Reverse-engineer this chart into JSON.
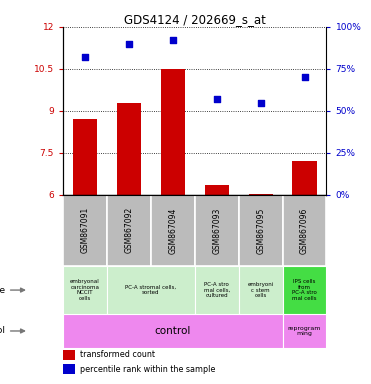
{
  "title": "GDS4124 / 202669_s_at",
  "samples": [
    "GSM867091",
    "GSM867092",
    "GSM867094",
    "GSM867093",
    "GSM867095",
    "GSM867096"
  ],
  "bar_values": [
    8.7,
    9.3,
    10.5,
    6.35,
    6.05,
    7.2
  ],
  "dot_values": [
    82,
    90,
    92,
    57,
    55,
    70
  ],
  "ylim_left": [
    6,
    12
  ],
  "ylim_right": [
    0,
    100
  ],
  "yticks_left": [
    6,
    7.5,
    9,
    10.5,
    12
  ],
  "yticks_right": [
    0,
    25,
    50,
    75,
    100
  ],
  "ytick_labels_left": [
    "6",
    "7.5",
    "9",
    "10.5",
    "12"
  ],
  "ytick_labels_right": [
    "0%",
    "25%",
    "50%",
    "75%",
    "100%"
  ],
  "bar_color": "#cc0000",
  "dot_color": "#0000cc",
  "left_axis_color": "#cc0000",
  "right_axis_color": "#0000cc",
  "cell_types": [
    {
      "label": "embryonal\ncarcinoma\nNCCIT\ncells",
      "span": [
        0,
        1
      ]
    },
    {
      "label": "PC-A stromal cells,\nsorted",
      "span": [
        1,
        3
      ]
    },
    {
      "label": "PC-A stro\nmal cells,\ncultured",
      "span": [
        3,
        4
      ]
    },
    {
      "label": "embryoni\nc stem\ncells",
      "span": [
        4,
        5
      ]
    },
    {
      "label": "IPS cells\nfrom\nPC-A stro\nmal cells",
      "span": [
        5,
        6
      ]
    }
  ],
  "cell_type_colors": [
    "#cceecc",
    "#cceecc",
    "#cceecc",
    "#cceecc",
    "#44dd44"
  ],
  "protocol_control_label": "control",
  "protocol_reprog_label": "reprogram\nming",
  "protocol_color": "#ee88ee",
  "sample_bg_color": "#bbbbbb",
  "legend_bar_label": "transformed count",
  "legend_dot_label": "percentile rank within the sample"
}
